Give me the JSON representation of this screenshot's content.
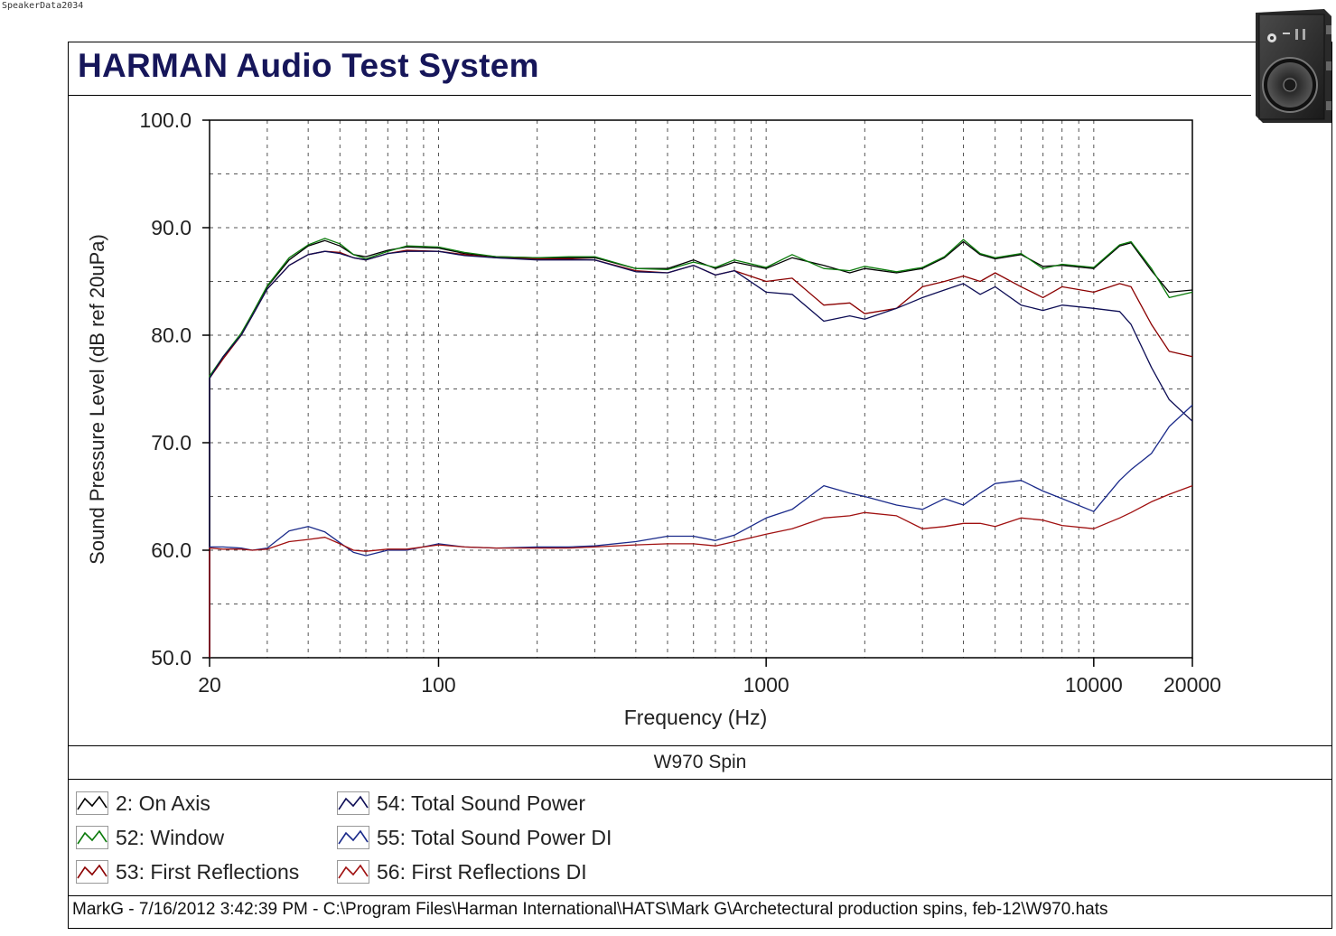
{
  "watermark": "SpeakerData2034",
  "header": {
    "title": "HARMAN Audio Test System"
  },
  "chart_data": {
    "type": "line",
    "title": "W970 Spin",
    "xlabel": "Frequency (Hz)",
    "ylabel": "Sound Pressure Level (dB ref 20uPa)",
    "xscale": "log",
    "xlim": [
      20,
      20000
    ],
    "ylim": [
      50,
      100
    ],
    "xticks": [
      20,
      100,
      1000,
      10000,
      20000
    ],
    "xtick_labels": [
      "20",
      "100",
      "1000",
      "10000",
      "20000"
    ],
    "yticks": [
      50,
      60,
      70,
      80,
      90,
      100
    ],
    "ytick_labels": [
      "50.0",
      "60.0",
      "70.0",
      "80.0",
      "90.0",
      "100.0"
    ],
    "grid": true,
    "legend_position": "bottom",
    "series": [
      {
        "name": "2: On Axis",
        "color": "#000000",
        "x": [
          20,
          22,
          25,
          27,
          30,
          35,
          40,
          45,
          50,
          55,
          60,
          70,
          80,
          100,
          120,
          150,
          200,
          250,
          300,
          400,
          500,
          600,
          700,
          800,
          1000,
          1200,
          1500,
          1800,
          2000,
          2500,
          3000,
          3500,
          4000,
          4500,
          5000,
          6000,
          7000,
          8000,
          10000,
          12000,
          13000,
          15000,
          17000,
          20000
        ],
        "y": [
          76,
          78,
          80,
          82,
          84.5,
          87,
          88.3,
          88.8,
          88.3,
          87.5,
          87.3,
          87.9,
          88.2,
          88.1,
          87.6,
          87.3,
          87.2,
          87.2,
          87.2,
          86.2,
          86.2,
          87,
          86.2,
          86.8,
          86.2,
          87.2,
          86.5,
          85.8,
          86.2,
          85.8,
          86.2,
          87.2,
          88.7,
          87.5,
          87.1,
          87.5,
          86.4,
          86.5,
          86.2,
          88.3,
          88.6,
          86,
          84,
          84.2
        ]
      },
      {
        "name": "52: Window",
        "color": "#0a7a0a",
        "x": [
          20,
          22,
          25,
          27,
          30,
          35,
          40,
          45,
          50,
          55,
          60,
          70,
          80,
          100,
          120,
          150,
          200,
          250,
          300,
          400,
          500,
          600,
          700,
          800,
          1000,
          1200,
          1500,
          1800,
          2000,
          2500,
          3000,
          3500,
          4000,
          4500,
          5000,
          6000,
          7000,
          8000,
          10000,
          12000,
          13000,
          15000,
          17000,
          20000
        ],
        "y": [
          76.2,
          78,
          80.2,
          82,
          84.6,
          87.2,
          88.4,
          89,
          88.5,
          87.5,
          87.1,
          87.8,
          88.3,
          88.2,
          87.7,
          87.3,
          87.2,
          87.3,
          87.3,
          86.2,
          86.1,
          86.8,
          86.3,
          87,
          86.3,
          87.5,
          86.2,
          86,
          86.4,
          85.9,
          86.3,
          87.3,
          88.9,
          87.6,
          87.2,
          87.6,
          86.2,
          86.6,
          86.3,
          88.4,
          88.7,
          86.2,
          83.5,
          84
        ]
      },
      {
        "name": "53: First Reflections",
        "color": "#8b0000",
        "x": [
          20,
          22,
          25,
          27,
          30,
          35,
          40,
          45,
          50,
          55,
          60,
          70,
          80,
          100,
          120,
          150,
          200,
          250,
          300,
          400,
          500,
          600,
          700,
          800,
          1000,
          1200,
          1500,
          1800,
          2000,
          2500,
          3000,
          3500,
          4000,
          4500,
          5000,
          6000,
          7000,
          8000,
          10000,
          12000,
          13000,
          15000,
          17000,
          20000
        ],
        "y": [
          76,
          77.8,
          80,
          81.8,
          84.3,
          86.5,
          87.5,
          87.8,
          87.7,
          87.2,
          87,
          87.6,
          87.9,
          87.8,
          87.5,
          87.2,
          87.1,
          87.1,
          87,
          86,
          85.8,
          86.5,
          85.6,
          86,
          85,
          85.3,
          82.8,
          83,
          82,
          82.5,
          84.5,
          85,
          85.5,
          85,
          85.8,
          84.5,
          83.5,
          84.5,
          84,
          84.8,
          84.5,
          81,
          78.5,
          78
        ]
      },
      {
        "name": "54: Total Sound Power",
        "color": "#0d0d55",
        "x": [
          20,
          22,
          25,
          27,
          30,
          35,
          40,
          45,
          50,
          55,
          60,
          70,
          80,
          100,
          120,
          150,
          200,
          250,
          300,
          400,
          500,
          600,
          700,
          800,
          1000,
          1200,
          1500,
          1800,
          2000,
          2500,
          3000,
          3500,
          4000,
          4500,
          5000,
          6000,
          7000,
          8000,
          10000,
          12000,
          13000,
          15000,
          17000,
          20000
        ],
        "y": [
          76,
          78,
          80,
          81.8,
          84.3,
          86.5,
          87.5,
          87.8,
          87.6,
          87.2,
          87,
          87.6,
          87.8,
          87.8,
          87.4,
          87.2,
          87,
          87,
          87,
          85.9,
          85.8,
          86.5,
          85.6,
          86,
          84,
          83.8,
          81.3,
          81.8,
          81.5,
          82.5,
          83.5,
          84.2,
          84.8,
          83.8,
          84.5,
          82.8,
          82.3,
          82.8,
          82.5,
          82.2,
          81,
          77,
          74,
          72
        ]
      },
      {
        "name": "55: Total Sound Power DI",
        "color": "#1a2a8a",
        "x": [
          20,
          22,
          25,
          27,
          30,
          35,
          40,
          45,
          50,
          55,
          60,
          70,
          80,
          100,
          120,
          150,
          200,
          250,
          300,
          400,
          500,
          600,
          700,
          800,
          1000,
          1200,
          1500,
          1800,
          2000,
          2500,
          3000,
          3500,
          4000,
          4500,
          5000,
          6000,
          7000,
          8000,
          10000,
          12000,
          13000,
          15000,
          17000,
          20000
        ],
        "y": [
          60.3,
          60.3,
          60.2,
          60,
          60.2,
          61.8,
          62.2,
          61.7,
          60.7,
          59.8,
          59.5,
          60,
          60,
          60.6,
          60.3,
          60.2,
          60.3,
          60.3,
          60.4,
          60.8,
          61.3,
          61.3,
          60.9,
          61.4,
          63,
          63.8,
          66,
          65.3,
          65,
          64.2,
          63.8,
          64.8,
          64.2,
          65.3,
          66.2,
          66.5,
          65.5,
          64.8,
          63.6,
          66.5,
          67.5,
          69,
          71.5,
          73.5
        ]
      },
      {
        "name": "56: First Reflections DI",
        "color": "#a01010",
        "x": [
          20,
          22,
          25,
          27,
          30,
          35,
          40,
          45,
          50,
          55,
          60,
          70,
          80,
          100,
          120,
          150,
          200,
          250,
          300,
          400,
          500,
          600,
          700,
          800,
          1000,
          1200,
          1500,
          1800,
          2000,
          2500,
          3000,
          3500,
          4000,
          4500,
          5000,
          6000,
          7000,
          8000,
          10000,
          12000,
          13000,
          15000,
          17000,
          20000
        ],
        "y": [
          60.2,
          60.1,
          60.1,
          60,
          60.1,
          60.8,
          61,
          61.2,
          60.6,
          60,
          59.9,
          60.1,
          60.1,
          60.5,
          60.3,
          60.2,
          60.2,
          60.2,
          60.3,
          60.5,
          60.6,
          60.6,
          60.4,
          60.8,
          61.5,
          62,
          63,
          63.2,
          63.5,
          63.2,
          62,
          62.2,
          62.5,
          62.5,
          62.2,
          63,
          62.8,
          62.3,
          62,
          63,
          63.5,
          64.5,
          65.2,
          66
        ]
      }
    ]
  },
  "legend": [
    {
      "label": "2: On Axis",
      "color": "#000000"
    },
    {
      "label": "52: Window",
      "color": "#0a7a0a"
    },
    {
      "label": "53: First Reflections",
      "color": "#8b0000"
    },
    {
      "label": "54: Total Sound Power",
      "color": "#0d0d55"
    },
    {
      "label": "55: Total Sound Power DI",
      "color": "#1a2a8a"
    },
    {
      "label": "56: First Reflections DI",
      "color": "#a01010"
    }
  ],
  "footer": {
    "text": "MarkG - 7/16/2012 3:42:39 PM - C:\\Program Files\\Harman International\\HATS\\Mark G\\Archetectural production spins, feb-12\\W970.hats"
  },
  "product_image": {
    "icon": "in-wall-speaker-icon"
  }
}
